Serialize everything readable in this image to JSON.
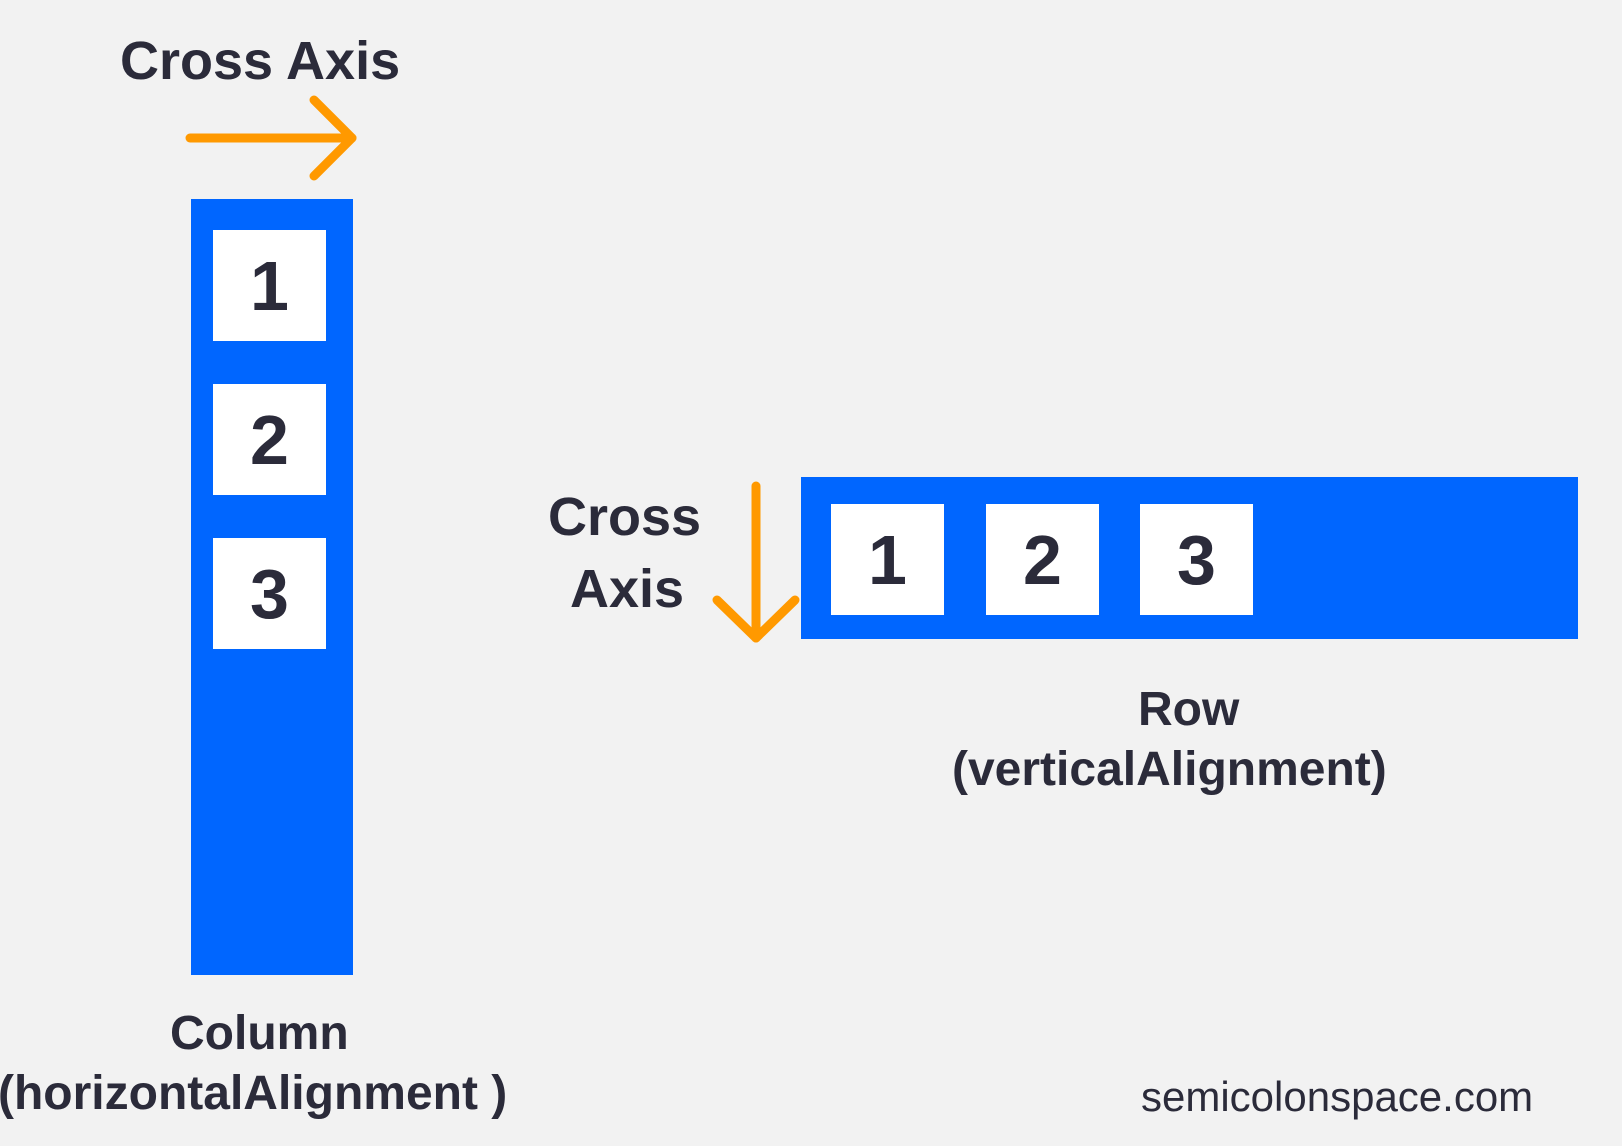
{
  "colors": {
    "container": "#0066ff",
    "arrow": "#ff9900",
    "text": "#2b2b3a",
    "box": "#ffffff"
  },
  "column_diagram": {
    "cross_axis_label": "Cross Axis",
    "items": [
      "1",
      "2",
      "3"
    ],
    "caption_line1": "Column",
    "caption_line2": "(horizontalAlignment )"
  },
  "row_diagram": {
    "cross_axis_label_line1": "Cross",
    "cross_axis_label_line2": "Axis",
    "items": [
      "1",
      "2",
      "3"
    ],
    "caption_line1": "Row",
    "caption_line2": "(verticalAlignment)"
  },
  "watermark": "semicolonspace.com"
}
